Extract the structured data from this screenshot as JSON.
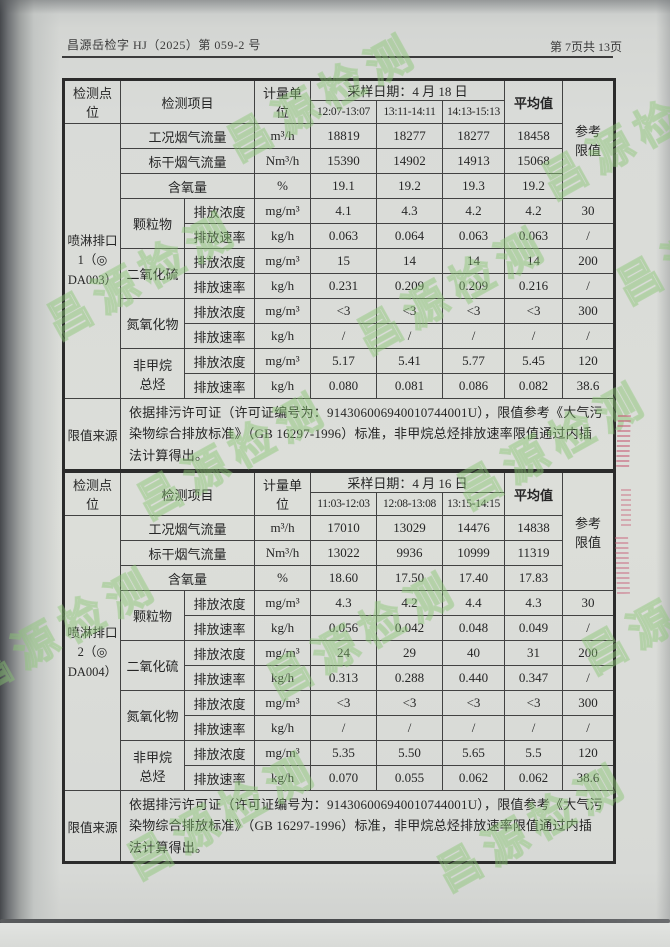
{
  "page_header": {
    "doc_number": "昌源岳检字 HJ（2025）第 059-2 号",
    "page_indicator": "第 7页共 13页"
  },
  "watermark_text": "昌源检测",
  "colors": {
    "watermark_green": "#8bc674",
    "stamp_red": "#c85a74",
    "paper_grey": "#d9dbd8"
  },
  "table_header": {
    "point": "检测点位",
    "item": "检测项目",
    "unit": "计量单位",
    "average": "平均值",
    "ref_limit_lines": [
      "参考",
      "限值"
    ]
  },
  "limit_source": {
    "label": "限值来源",
    "text": "依据排污许可证（许可证编号为：914306006940010744001U），限值参考《大气污染物综合排放标准》（GB 16297-1996）标准，非甲烷总烃排放速率限值通过内插法计算得出。"
  },
  "tables": [
    {
      "point_label_lines": [
        "喷淋排口",
        "1（◎",
        "DA003）"
      ],
      "sample_date": "采样日期：4 月 18 日",
      "time_periods": [
        "12:07-13:07",
        "13:11-14:11",
        "14:13-15:13"
      ],
      "flow_rows": [
        {
          "item": "工况烟气流量",
          "unit": "m³/h",
          "values": [
            "18819",
            "18277",
            "18277"
          ],
          "average": "18458"
        },
        {
          "item": "标干烟气流量",
          "unit": "Nm³/h",
          "values": [
            "15390",
            "14902",
            "14913"
          ],
          "average": "15068"
        },
        {
          "item": "含氧量",
          "unit": "%",
          "values": [
            "19.1",
            "19.2",
            "19.3"
          ],
          "average": "19.2"
        }
      ],
      "pollutants": [
        {
          "name_lines": [
            "颗粒物"
          ],
          "rows": [
            {
              "metric": "排放浓度",
              "unit": "mg/m³",
              "values": [
                "4.1",
                "4.3",
                "4.2"
              ],
              "average": "4.2",
              "limit": "30"
            },
            {
              "metric": "排放速率",
              "unit": "kg/h",
              "values": [
                "0.063",
                "0.064",
                "0.063"
              ],
              "average": "0.063",
              "limit": "/"
            }
          ]
        },
        {
          "name_lines": [
            "二氧化硫"
          ],
          "rows": [
            {
              "metric": "排放浓度",
              "unit": "mg/m³",
              "values": [
                "15",
                "14",
                "14"
              ],
              "average": "14",
              "limit": "200"
            },
            {
              "metric": "排放速率",
              "unit": "kg/h",
              "values": [
                "0.231",
                "0.209",
                "0.209"
              ],
              "average": "0.216",
              "limit": "/"
            }
          ]
        },
        {
          "name_lines": [
            "氮氧化物"
          ],
          "rows": [
            {
              "metric": "排放浓度",
              "unit": "mg/m³",
              "values": [
                "<3",
                "<3",
                "<3"
              ],
              "average": "<3",
              "limit": "300"
            },
            {
              "metric": "排放速率",
              "unit": "kg/h",
              "values": [
                "/",
                "/",
                "/"
              ],
              "average": "/",
              "limit": "/"
            }
          ]
        },
        {
          "name_lines": [
            "非甲烷",
            "总烃"
          ],
          "rows": [
            {
              "metric": "排放浓度",
              "unit": "mg/m³",
              "values": [
                "5.17",
                "5.41",
                "5.77"
              ],
              "average": "5.45",
              "limit": "120"
            },
            {
              "metric": "排放速率",
              "unit": "kg/h",
              "values": [
                "0.080",
                "0.081",
                "0.086"
              ],
              "average": "0.082",
              "limit": "38.6"
            }
          ]
        }
      ]
    },
    {
      "point_label_lines": [
        "喷淋排口",
        "2（◎",
        "DA004）"
      ],
      "sample_date": "采样日期：4 月 16 日",
      "time_periods": [
        "11:03-12:03",
        "12:08-13:08",
        "13:15-14:15"
      ],
      "flow_rows": [
        {
          "item": "工况烟气流量",
          "unit": "m³/h",
          "values": [
            "17010",
            "13029",
            "14476"
          ],
          "average": "14838"
        },
        {
          "item": "标干烟气流量",
          "unit": "Nm³/h",
          "values": [
            "13022",
            "9936",
            "10999"
          ],
          "average": "11319"
        },
        {
          "item": "含氧量",
          "unit": "%",
          "values": [
            "18.60",
            "17.50",
            "17.40"
          ],
          "average": "17.83"
        }
      ],
      "pollutants": [
        {
          "name_lines": [
            "颗粒物"
          ],
          "rows": [
            {
              "metric": "排放浓度",
              "unit": "mg/m³",
              "values": [
                "4.3",
                "4.2",
                "4.4"
              ],
              "average": "4.3",
              "limit": "30"
            },
            {
              "metric": "排放速率",
              "unit": "kg/h",
              "values": [
                "0.056",
                "0.042",
                "0.048"
              ],
              "average": "0.049",
              "limit": "/"
            }
          ]
        },
        {
          "name_lines": [
            "二氧化硫"
          ],
          "rows": [
            {
              "metric": "排放浓度",
              "unit": "mg/m³",
              "values": [
                "24",
                "29",
                "40"
              ],
              "average": "31",
              "limit": "200"
            },
            {
              "metric": "排放速率",
              "unit": "kg/h",
              "values": [
                "0.313",
                "0.288",
                "0.440"
              ],
              "average": "0.347",
              "limit": "/"
            }
          ]
        },
        {
          "name_lines": [
            "氮氧化物"
          ],
          "rows": [
            {
              "metric": "排放浓度",
              "unit": "mg/m³",
              "values": [
                "<3",
                "<3",
                "<3"
              ],
              "average": "<3",
              "limit": "300"
            },
            {
              "metric": "排放速率",
              "unit": "kg/h",
              "values": [
                "/",
                "/",
                "/"
              ],
              "average": "/",
              "limit": "/"
            }
          ]
        },
        {
          "name_lines": [
            "非甲烷",
            "总烃"
          ],
          "rows": [
            {
              "metric": "排放浓度",
              "unit": "mg/m³",
              "values": [
                "5.35",
                "5.50",
                "5.65"
              ],
              "average": "5.5",
              "limit": "120"
            },
            {
              "metric": "排放速率",
              "unit": "kg/h",
              "values": [
                "0.070",
                "0.055",
                "0.062"
              ],
              "average": "0.062",
              "limit": "38.6"
            }
          ]
        }
      ]
    }
  ]
}
